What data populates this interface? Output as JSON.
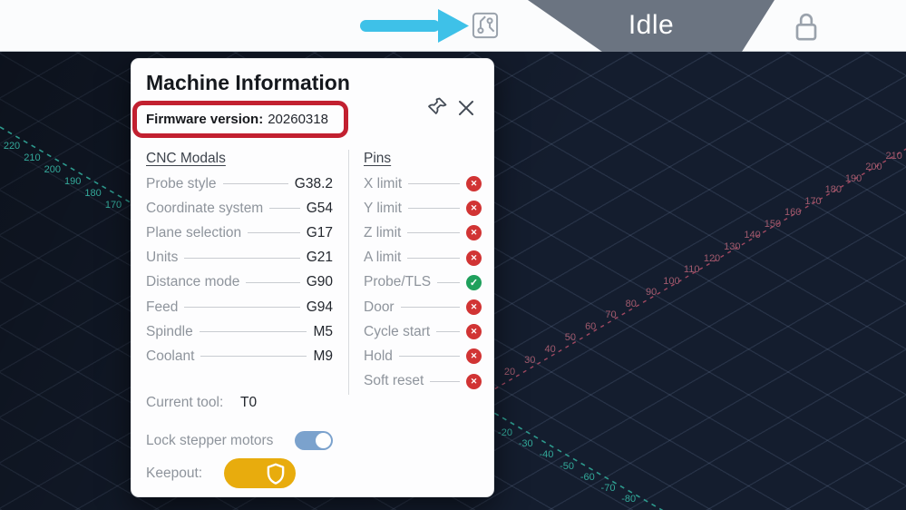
{
  "topbar": {
    "status": "Idle",
    "firmware_icon": "circuit-board-icon",
    "lock_icon": "lock-icon",
    "colors": {
      "trapezoid": "#6b7481",
      "bar": "#fbfcfd"
    }
  },
  "annotations": {
    "arrow_color": "#3ec1e8",
    "highlight_color": "#c22030"
  },
  "dialog": {
    "title": "Machine Information",
    "firmware": {
      "label": "Firmware version:",
      "value": "20260318"
    },
    "modals": {
      "header": "CNC Modals",
      "rows": [
        {
          "label": "Probe style",
          "value": "G38.2"
        },
        {
          "label": "Coordinate system",
          "value": "G54"
        },
        {
          "label": "Plane selection",
          "value": "G17"
        },
        {
          "label": "Units",
          "value": "G21"
        },
        {
          "label": "Distance mode",
          "value": "G90"
        },
        {
          "label": "Feed",
          "value": "G94"
        },
        {
          "label": "Spindle",
          "value": "M5"
        },
        {
          "label": "Coolant",
          "value": "M9"
        }
      ]
    },
    "pins": {
      "header": "Pins",
      "rows": [
        {
          "label": "X limit",
          "state": "off"
        },
        {
          "label": "Y limit",
          "state": "off"
        },
        {
          "label": "Z limit",
          "state": "off"
        },
        {
          "label": "A limit",
          "state": "off"
        },
        {
          "label": "Probe/TLS",
          "state": "on"
        },
        {
          "label": "Door",
          "state": "off"
        },
        {
          "label": "Cycle start",
          "state": "off"
        },
        {
          "label": "Hold",
          "state": "off"
        },
        {
          "label": "Soft reset",
          "state": "off"
        }
      ],
      "state_glyphs": {
        "off": "✕",
        "on": "✓"
      },
      "state_colors": {
        "off": "#d13434",
        "on": "#1fa05c"
      }
    },
    "current_tool": {
      "label": "Current tool:",
      "value": "T0"
    },
    "toggles": {
      "stepper": {
        "label": "Lock stepper motors",
        "state": "on",
        "color": "#7ba2cd"
      },
      "keepout": {
        "label": "Keepout:",
        "state": "on",
        "color": "#e8ac0d",
        "icon": "shield-icon"
      }
    }
  },
  "visualizer": {
    "background": "#141d2e",
    "grid_color": "rgba(130,150,185,0.17)",
    "teal_axis": {
      "color": "#2fa193",
      "labels_top": [
        "220",
        "210",
        "200",
        "190",
        "180",
        "170"
      ],
      "labels_bottom": [
        "-20",
        "-30",
        "-40",
        "-50",
        "-60",
        "-70",
        "-80"
      ]
    },
    "red_axis": {
      "color": "#a84b64",
      "labels": [
        "20",
        "30",
        "40",
        "50",
        "60",
        "70",
        "80",
        "90",
        "100",
        "110",
        "120",
        "130",
        "140",
        "150",
        "160",
        "170",
        "180",
        "190",
        "200",
        "210"
      ]
    }
  }
}
